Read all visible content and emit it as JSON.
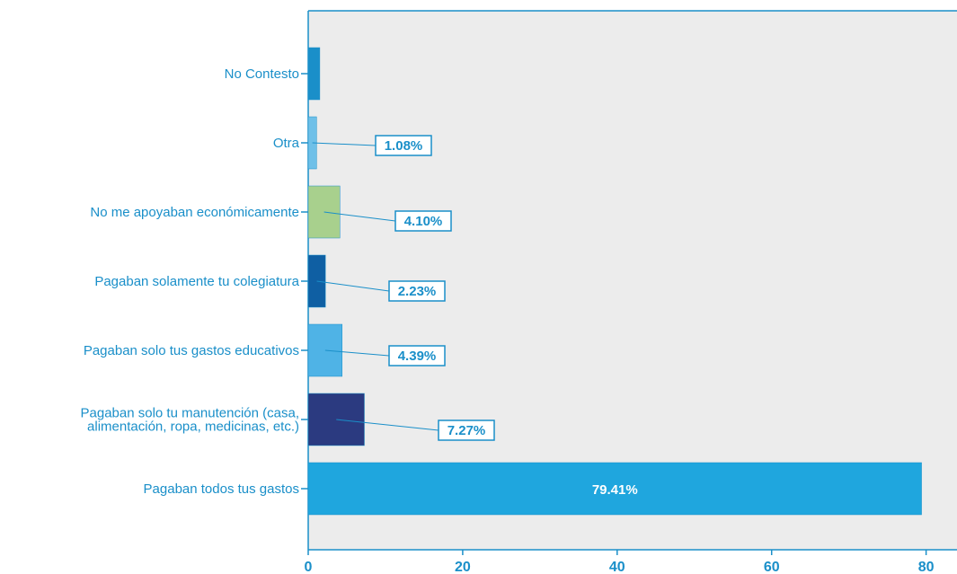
{
  "chart_data": {
    "type": "bar",
    "orientation": "horizontal",
    "categories": [
      "No Contesto",
      "Otra",
      "No me apoyaban económicamente",
      "Pagaban solamente tu colegiatura",
      "Pagaban solo tus gastos educativos",
      "Pagaban solo tu manutención (casa, alimentación, ropa, medicinas, etc.)",
      "Pagaban todos tus gastos"
    ],
    "category_lines": [
      [
        "No Contesto"
      ],
      [
        "Otra"
      ],
      [
        "No me apoyaban económicamente"
      ],
      [
        "Pagaban solamente tu colegiatura"
      ],
      [
        "Pagaban solo tus gastos educativos"
      ],
      [
        "Pagaban solo tu manutención (casa,",
        "alimentación, ropa, medicinas, etc.)"
      ],
      [
        "Pagaban todos tus gastos"
      ]
    ],
    "values": [
      1.5,
      1.08,
      4.1,
      2.23,
      4.39,
      7.27,
      79.41
    ],
    "data_labels": [
      "",
      "1.08%",
      "4.10%",
      "2.23%",
      "4.39%",
      "7.27%",
      "79.41%"
    ],
    "colors": [
      "#1a8fc9",
      "#6fc0e8",
      "#a8d08d",
      "#0f5fa3",
      "#4fb3e6",
      "#2b3a80",
      "#1fa6de"
    ],
    "xlim": [
      0,
      84
    ],
    "xticks": [
      0,
      20,
      40,
      60,
      80
    ],
    "xtick_labels": [
      "0",
      "20",
      "40",
      "60",
      "80"
    ],
    "title": "",
    "xlabel": "",
    "ylabel": "",
    "grid": false,
    "background": "#ececec",
    "axis_color": "#1a8fc9"
  }
}
